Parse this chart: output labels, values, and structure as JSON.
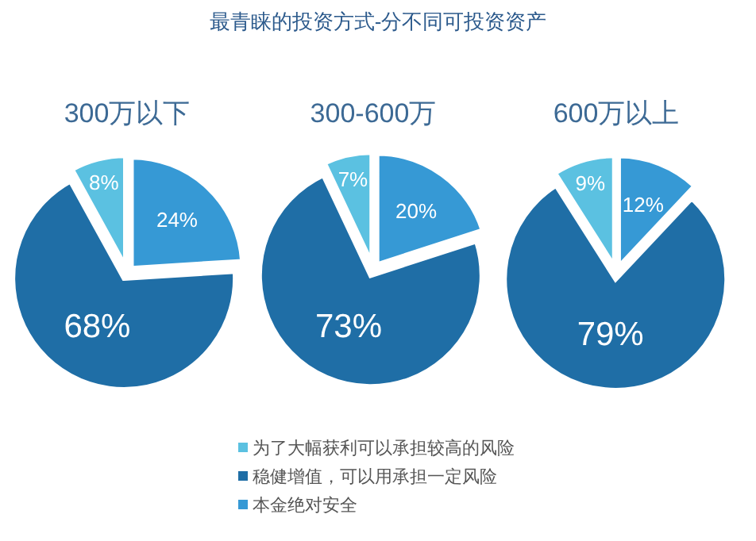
{
  "chart_data": [
    {
      "type": "pie",
      "subtitle": "300万以下",
      "categories": [
        null,
        null,
        null
      ],
      "values": [
        8,
        68,
        24
      ],
      "value_labels": [
        "8%",
        "68%",
        "24%"
      ],
      "colors": [
        "#5bc1e1",
        "#1f6ea6",
        "#3699d5"
      ]
    },
    {
      "type": "pie",
      "title": "最青睐的投资方式-分不同可投资资产",
      "subtitle": "300-600万",
      "categories": [
        "为了大幅获利可以承担较高的风险",
        "稳健增值，可以用承担一定风险",
        "本金绝对安全"
      ],
      "values": [
        7,
        73,
        20
      ],
      "value_labels": [
        "7%",
        "73%",
        "20%"
      ],
      "colors": [
        "#5bc1e1",
        "#1f6ea6",
        "#3699d5"
      ],
      "legend": "bottom"
    },
    {
      "type": "pie",
      "subtitle": "600万以上",
      "categories": [
        null,
        null,
        null
      ],
      "values": [
        9,
        79,
        12
      ],
      "value_labels": [
        "9%",
        "79%",
        "12%"
      ],
      "colors": [
        "#5bc1e1",
        "#1f6ea6",
        "#3699d5"
      ]
    }
  ]
}
